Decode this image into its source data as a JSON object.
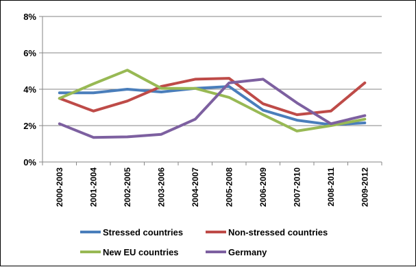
{
  "chart_data": {
    "type": "line",
    "categories": [
      "2000-2003",
      "2001-2004",
      "2002-2005",
      "2003-2006",
      "2004-2007",
      "2005-2008",
      "2006-2009",
      "2007-2010",
      "2008-2011",
      "2009-2012"
    ],
    "ylim": [
      0,
      8
    ],
    "yticks": [
      0,
      2,
      4,
      6,
      8
    ],
    "ytick_labels": [
      "0%",
      "2%",
      "4%",
      "6%",
      "8%"
    ],
    "grid": "horizontal",
    "legend_position": "bottom",
    "series": [
      {
        "name": "Stressed countries",
        "color": "#4a7ebb",
        "values": [
          3.8,
          3.8,
          4.0,
          3.85,
          4.05,
          4.15,
          2.85,
          2.3,
          2.05,
          2.15
        ]
      },
      {
        "name": "Non-stressed countries",
        "color": "#be4b48",
        "values": [
          3.5,
          2.8,
          3.35,
          4.15,
          4.55,
          4.6,
          3.2,
          2.6,
          2.8,
          4.35
        ]
      },
      {
        "name": "New EU countries",
        "color": "#98b954",
        "values": [
          3.5,
          4.3,
          5.05,
          4.05,
          4.05,
          3.55,
          2.6,
          1.7,
          2.0,
          2.35
        ]
      },
      {
        "name": "Germany",
        "color": "#7d60a0",
        "values": [
          2.1,
          1.35,
          1.38,
          1.52,
          2.35,
          4.35,
          4.55,
          3.25,
          2.1,
          2.55
        ]
      }
    ]
  }
}
